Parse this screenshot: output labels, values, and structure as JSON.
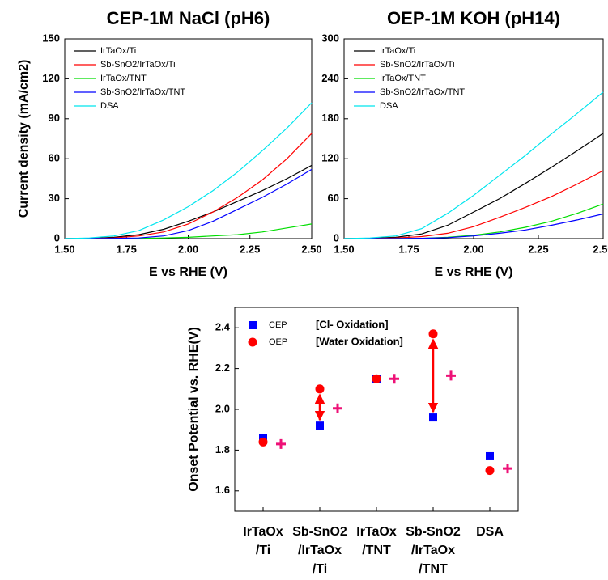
{
  "chart_data": [
    {
      "type": "line",
      "title": "CEP-1M NaCl (pH6)",
      "xlabel": "E vs RHE (V)",
      "ylabel": "Current density (mA/cm2)",
      "x": [
        1.5,
        1.6,
        1.7,
        1.8,
        1.9,
        2.0,
        2.1,
        2.2,
        2.3,
        2.4,
        2.5
      ],
      "series": [
        {
          "name": "IrTaOx/Ti",
          "color": "#000000",
          "values": [
            0,
            0.2,
            1,
            3,
            7,
            13,
            20,
            28,
            36,
            45,
            55
          ]
        },
        {
          "name": "Sb-SnO2/IrTaOx/Ti",
          "color": "#ff0000",
          "values": [
            0,
            0.1,
            0.5,
            2,
            5,
            11,
            20,
            31,
            44,
            60,
            79
          ]
        },
        {
          "name": "IrTaOx/TNT",
          "color": "#00dd00",
          "values": [
            0,
            0,
            0,
            0.2,
            0.5,
            1,
            2,
            3,
            5,
            8,
            11
          ]
        },
        {
          "name": "Sb-SnO2/IrTaOx/TNT",
          "color": "#0000ff",
          "values": [
            0,
            0,
            0.2,
            0.5,
            2,
            6,
            13,
            22,
            31,
            41,
            52
          ]
        },
        {
          "name": "DSA",
          "color": "#00e5ee",
          "values": [
            0,
            0.5,
            2,
            6,
            14,
            24,
            36,
            50,
            66,
            83,
            102
          ]
        }
      ],
      "xlim": [
        1.5,
        2.5
      ],
      "xticks": [
        {
          "value": 1.5,
          "label": "1.50"
        },
        {
          "value": 1.75,
          "label": "1.75"
        },
        {
          "value": 2.0,
          "label": "2.00"
        },
        {
          "value": 2.25,
          "label": "2.25"
        },
        {
          "value": 2.5,
          "label": "2.50"
        }
      ],
      "ylim": [
        0,
        150
      ],
      "yticks": [
        0,
        30,
        60,
        90,
        120,
        150
      ],
      "title_color": "#1f3fd6",
      "legend": "upper left"
    },
    {
      "type": "line",
      "title": "OEP-1M KOH (pH14)",
      "xlabel": "E vs RHE (V)",
      "x": [
        1.5,
        1.6,
        1.7,
        1.8,
        1.9,
        2.0,
        2.1,
        2.2,
        2.3,
        2.4,
        2.5
      ],
      "series": [
        {
          "name": "IrTaOx/Ti",
          "color": "#000000",
          "values": [
            0,
            0.5,
            2,
            7,
            20,
            40,
            60,
            83,
            107,
            132,
            158
          ]
        },
        {
          "name": "Sb-SnO2/IrTaOx/Ti",
          "color": "#ff0000",
          "values": [
            0,
            0,
            1,
            3,
            8,
            18,
            32,
            47,
            63,
            82,
            102
          ]
        },
        {
          "name": "IrTaOx/TNT",
          "color": "#00dd00",
          "values": [
            0,
            0,
            0,
            0.5,
            2,
            5,
            10,
            17,
            26,
            38,
            52
          ]
        },
        {
          "name": "Sb-SnO2/IrTaOx/TNT",
          "color": "#0000ff",
          "values": [
            0,
            0,
            0,
            0.5,
            1.5,
            4,
            8,
            13,
            20,
            28,
            37
          ]
        },
        {
          "name": "DSA",
          "color": "#00e5ee",
          "values": [
            0,
            1,
            4,
            15,
            38,
            65,
            95,
            125,
            157,
            188,
            220
          ]
        }
      ],
      "xlim": [
        1.5,
        2.5
      ],
      "xticks": [
        {
          "value": 1.5,
          "label": "1.50"
        },
        {
          "value": 1.75,
          "label": "1.75"
        },
        {
          "value": 2.0,
          "label": "2.00"
        },
        {
          "value": 2.25,
          "label": "2.25"
        },
        {
          "value": 2.5,
          "label": "2.50"
        }
      ],
      "ylim": [
        0,
        300
      ],
      "yticks": [
        0,
        60,
        120,
        180,
        240,
        300
      ],
      "title_color": "#ee1111",
      "legend": "upper left"
    },
    {
      "type": "scatter",
      "ylabel": "Onset Potential vs. RHE(V)",
      "categories": [
        "IrTaOx/Ti",
        "Sb-SnO2/IrTaOx/Ti",
        "IrTaOx/TNT",
        "Sb-SnO2/IrTaOx/TNT",
        "DSA"
      ],
      "series": [
        {
          "name": "CEP",
          "color": "#0000ff",
          "marker": "square",
          "values": [
            1.86,
            1.92,
            2.15,
            1.96,
            1.77
          ]
        },
        {
          "name": "OEP",
          "color": "#ff0000",
          "marker": "circle",
          "values": [
            1.84,
            2.1,
            2.15,
            2.37,
            1.7
          ]
        },
        {
          "color": "#ee1177",
          "marker": "plus",
          "values": [
            1.83,
            2.005,
            2.15,
            2.165,
            1.71
          ]
        }
      ],
      "annotations": [
        "[Cl- Oxidation]",
        "[Water Oxidation]"
      ],
      "ylim": [
        1.5,
        2.5
      ],
      "yticks": [
        1.6,
        1.8,
        {
          "value": 2.0,
          "label": "2.0"
        },
        2.2,
        2.4
      ],
      "legend": "upper left"
    }
  ]
}
